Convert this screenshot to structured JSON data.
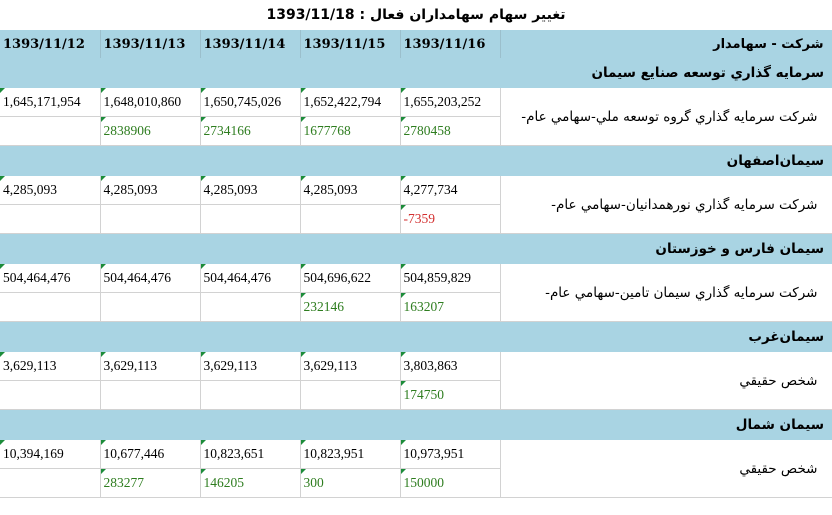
{
  "title": "تغيير سهام سهامداران فعال : 1393/11/18",
  "header": {
    "dates": [
      "1393/11/12",
      "1393/11/13",
      "1393/11/14",
      "1393/11/15",
      "1393/11/16"
    ],
    "name_label": "شركت - سهامدار"
  },
  "groups": [
    {
      "company": "سرمايه گذاري توسعه صنايع سيمان",
      "shareholder": "شركت سرمايه گذاري گروه توسعه ملي-سهامي عام-",
      "values": [
        "1,645,171,954",
        "1,648,010,860",
        "1,650,745,026",
        "1,652,422,794",
        "1,655,203,252"
      ],
      "changes": [
        "",
        "2838906",
        "2734166",
        "1677768",
        "2780458"
      ]
    },
    {
      "company": "سيمان‌اصفهان",
      "shareholder": "شركت سرمايه گذاري نورهمدانيان-سهامي عام-",
      "values": [
        "4,285,093",
        "4,285,093",
        "4,285,093",
        "4,285,093",
        "4,277,734"
      ],
      "changes": [
        "",
        "",
        "",
        "",
        "-7359"
      ]
    },
    {
      "company": "سيمان فارس و خوزستان",
      "shareholder": "شركت سرمايه گذاري سيمان تامين-سهامي عام-",
      "values": [
        "504,464,476",
        "504,464,476",
        "504,464,476",
        "504,696,622",
        "504,859,829"
      ],
      "changes": [
        "",
        "",
        "",
        "232146",
        "163207"
      ]
    },
    {
      "company": "سيمان‌غرب",
      "shareholder": "شخص حقيقي",
      "values": [
        "3,629,113",
        "3,629,113",
        "3,629,113",
        "3,629,113",
        "3,803,863"
      ],
      "changes": [
        "",
        "",
        "",
        "",
        "174750"
      ]
    },
    {
      "company": "سيمان شمال",
      "shareholder": "شخص حقيقي",
      "values": [
        "10,394,169",
        "10,677,446",
        "10,823,651",
        "10,823,951",
        "10,973,951"
      ],
      "changes": [
        "",
        "283277",
        "146205",
        "300",
        "150000"
      ]
    }
  ]
}
